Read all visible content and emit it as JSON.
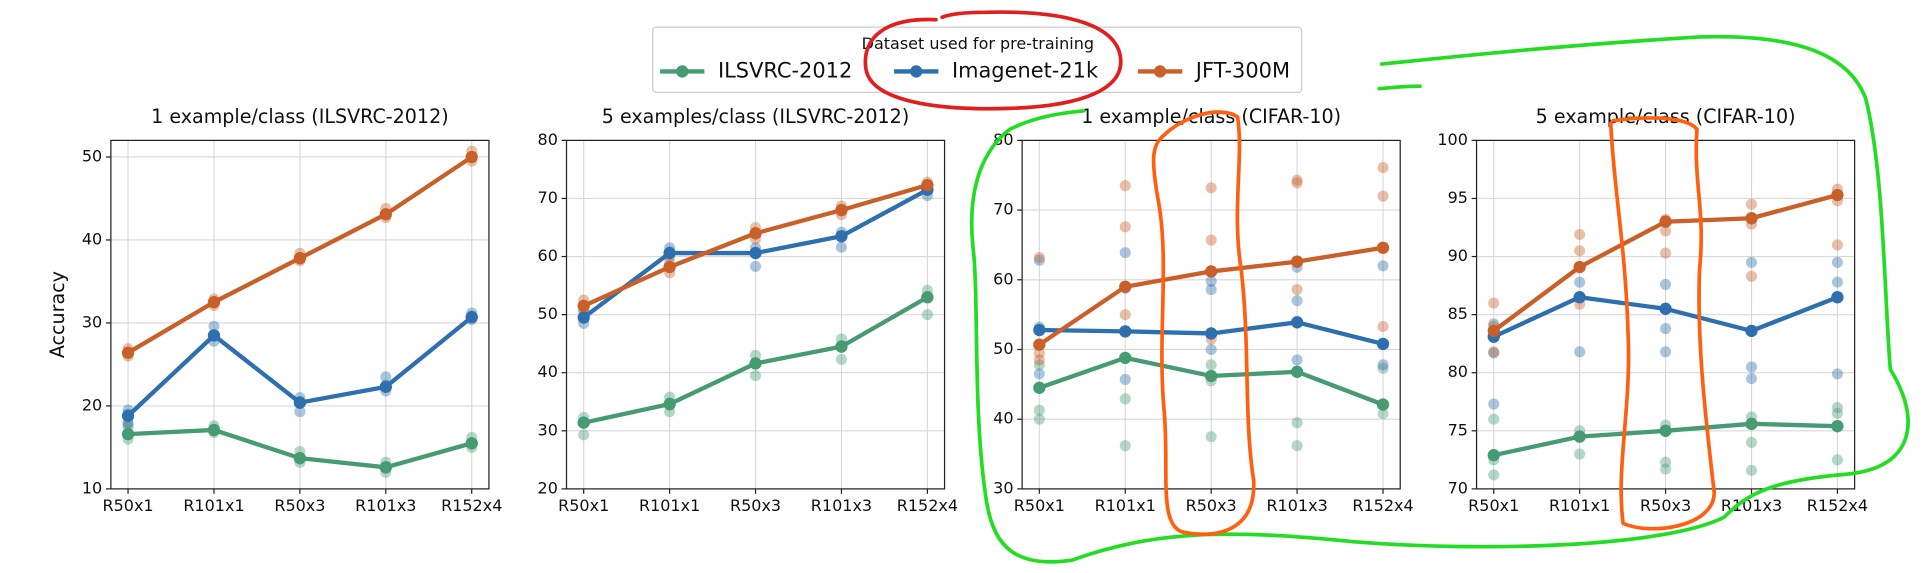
{
  "chart_data": [
    {
      "type": "line",
      "title": "1 example/class (ILSVRC-2012)",
      "ylabel": "Accuracy",
      "legend_title": "Dataset used for pre-training",
      "legend": "upper center",
      "grid": true,
      "categories": [
        "R50x1",
        "R101x1",
        "R50x3",
        "R101x3",
        "R152x4"
      ],
      "ylim": [
        10,
        52
      ],
      "yticks": [
        10,
        20,
        30,
        40,
        50
      ],
      "series": [
        {
          "name": "ILSVRC-2012",
          "color": "#479b72",
          "values": [
            16.6,
            17.1,
            13.7,
            12.6,
            15.5
          ],
          "runs": [
            [
              16,
              17.5,
              18
            ],
            [
              16.8,
              17.2,
              17.6
            ],
            [
              13.2,
              13.8,
              14.5
            ],
            [
              12,
              12.5,
              13.2
            ],
            [
              15,
              15.5,
              16.2
            ]
          ]
        },
        {
          "name": "Imagenet-21k",
          "color": "#2e6fae",
          "values": [
            18.8,
            28.5,
            20.4,
            22.3,
            30.7
          ],
          "runs": [
            [
              17.8,
              19,
              19.5
            ],
            [
              27.8,
              28.5,
              29.6
            ],
            [
              19.3,
              20.5,
              21
            ],
            [
              21.8,
              22.5,
              23.5
            ],
            [
              30.4,
              30.8,
              31.2
            ]
          ]
        },
        {
          "name": "JFT-300M",
          "color": "#c9602a",
          "values": [
            26.4,
            32.5,
            37.8,
            43.1,
            50.0
          ],
          "runs": [
            [
              26,
              26.4,
              26.9
            ],
            [
              32.1,
              32.5,
              32.9
            ],
            [
              37.5,
              37.9,
              38.4
            ],
            [
              42.7,
              43.1,
              43.8
            ],
            [
              49.5,
              50,
              50.7
            ]
          ]
        }
      ]
    },
    {
      "type": "line",
      "title": "5 examples/class (ILSVRC-2012)",
      "grid": true,
      "categories": [
        "R50x1",
        "R101x1",
        "R50x3",
        "R101x3",
        "R152x4"
      ],
      "ylim": [
        20,
        80
      ],
      "yticks": [
        20,
        30,
        40,
        50,
        60,
        70,
        80
      ],
      "series": [
        {
          "name": "ILSVRC-2012",
          "color": "#479b72",
          "values": [
            31.4,
            34.6,
            41.6,
            44.5,
            53.0
          ],
          "runs": [
            [
              29.3,
              31.5,
              32.3
            ],
            [
              33.3,
              34.8,
              35.8
            ],
            [
              39.5,
              41.5,
              43
            ],
            [
              42.3,
              44.5,
              45.8
            ],
            [
              50,
              53,
              54.2
            ]
          ]
        },
        {
          "name": "Imagenet-21k",
          "color": "#2e6fae",
          "values": [
            49.5,
            60.6,
            60.6,
            63.5,
            71.5
          ],
          "runs": [
            [
              48.5,
              49.5,
              50.8
            ],
            [
              60,
              60.8,
              61.5
            ],
            [
              58.3,
              60.6,
              61.5
            ],
            [
              61.6,
              63.5,
              64.2
            ],
            [
              70.5,
              71.5,
              72
            ]
          ]
        },
        {
          "name": "JFT-300M",
          "color": "#c9602a",
          "values": [
            51.5,
            58.2,
            64.0,
            68.0,
            72.3
          ],
          "runs": [
            [
              50.5,
              51.5,
              52.5
            ],
            [
              57.2,
              58.2,
              59
            ],
            [
              63,
              64,
              65
            ],
            [
              67.2,
              68,
              68.7
            ],
            [
              71.5,
              72.3,
              72.8
            ]
          ]
        }
      ]
    },
    {
      "type": "line",
      "title": "1 example/class (CIFAR-10)",
      "grid": true,
      "categories": [
        "R50x1",
        "R101x1",
        "R50x3",
        "R101x3",
        "R152x4"
      ],
      "ylim": [
        30,
        80
      ],
      "yticks": [
        30,
        40,
        50,
        60,
        70,
        80
      ],
      "series": [
        {
          "name": "ILSVRC-2012",
          "color": "#479b72",
          "values": [
            44.5,
            48.8,
            46.2,
            46.8,
            42.1
          ],
          "runs": [
            [
              40,
              41.3,
              47.8
            ],
            [
              36.2,
              42.9,
              48.8
            ],
            [
              37.5,
              45.5,
              47.8
            ],
            [
              36.2,
              39.5,
              46.8
            ],
            [
              40.8,
              42.1,
              47.3
            ]
          ]
        },
        {
          "name": "Imagenet-21k",
          "color": "#2e6fae",
          "values": [
            52.8,
            52.6,
            52.3,
            53.9,
            50.8
          ],
          "runs": [
            [
              46.5,
              53.2,
              62.8
            ],
            [
              45.7,
              58.8,
              63.9
            ],
            [
              50,
              58.6,
              59.8
            ],
            [
              48.5,
              57,
              61.8
            ],
            [
              47.8,
              50.8,
              62
            ]
          ]
        },
        {
          "name": "JFT-300M",
          "color": "#c9602a",
          "values": [
            50.7,
            59.0,
            61.2,
            62.6,
            64.6
          ],
          "runs": [
            [
              48.5,
              63.2,
              49.5
            ],
            [
              55,
              67.6,
              73.5
            ],
            [
              51.5,
              65.7,
              73.2
            ],
            [
              58.6,
              73.9,
              74.3
            ],
            [
              53.3,
              72,
              76.1
            ]
          ]
        }
      ]
    },
    {
      "type": "line",
      "title": "5 example/class (CIFAR-10)",
      "grid": true,
      "categories": [
        "R50x1",
        "R101x1",
        "R50x3",
        "R101x3",
        "R152x4"
      ],
      "ylim": [
        70,
        100
      ],
      "yticks": [
        70,
        75,
        80,
        85,
        90,
        95,
        100
      ],
      "series": [
        {
          "name": "ILSVRC-2012",
          "color": "#479b72",
          "values": [
            72.9,
            74.5,
            75.0,
            75.6,
            75.4
          ],
          "runs": [
            [
              71.2,
              72.5,
              76
            ],
            [
              73,
              74.5,
              75
            ],
            [
              71.7,
              72.3,
              75.5
            ],
            [
              71.6,
              74,
              76.2
            ],
            [
              72.5,
              76.5,
              77
            ]
          ]
        },
        {
          "name": "Imagenet-21k",
          "color": "#2e6fae",
          "values": [
            83.1,
            86.5,
            85.5,
            83.6,
            86.5
          ],
          "runs": [
            [
              77.3,
              81.7,
              84.2
            ],
            [
              81.8,
              86.5,
              87.8
            ],
            [
              81.8,
              83.8,
              87.6
            ],
            [
              79.5,
              80.5,
              89.5
            ],
            [
              79.9,
              87.8,
              89.5
            ]
          ]
        },
        {
          "name": "JFT-300M",
          "color": "#c9602a",
          "values": [
            83.6,
            89.1,
            93.0,
            93.3,
            95.3
          ],
          "runs": [
            [
              81.8,
              84,
              86
            ],
            [
              85.9,
              90.5,
              91.9
            ],
            [
              90.3,
              92.2,
              93.2
            ],
            [
              88.3,
              92.8,
              94.5
            ],
            [
              91,
              94.8,
              95.8
            ]
          ]
        }
      ]
    }
  ]
}
